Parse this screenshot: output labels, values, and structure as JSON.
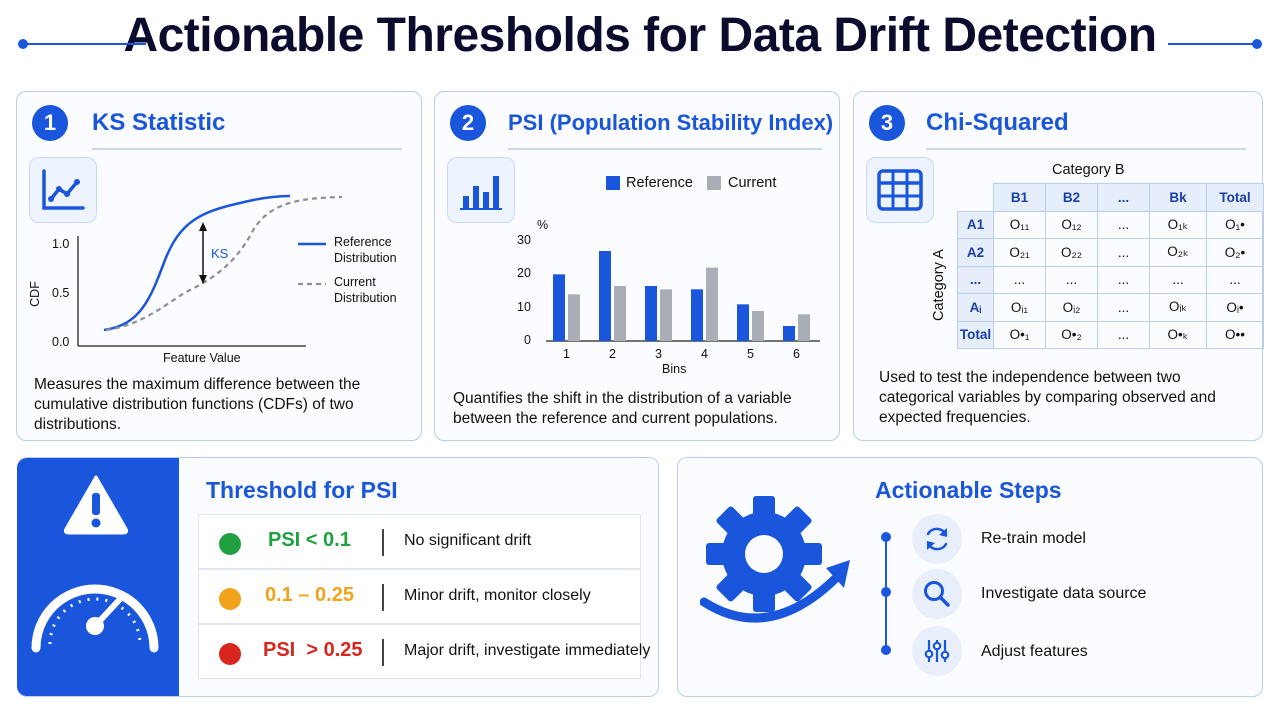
{
  "title": "Actionable Thresholds for Data Drift Detection",
  "colors": {
    "accent": "#1a56db",
    "gray": "#a9adb5",
    "green": "#1fa142",
    "orange": "#f0a31a",
    "red": "#d8261f"
  },
  "ks": {
    "number": "1",
    "title": "KS Statistic",
    "icon": "line-chart-icon",
    "y_axis_label": "CDF",
    "x_axis_label": "Feature Value",
    "y_ticks": [
      "0.0",
      "0.5",
      "1.0"
    ],
    "ks_label": "KS",
    "legend_reference_1": "Reference",
    "legend_reference_2": "Distribution",
    "legend_current_1": "Current",
    "legend_current_2": "Distribution",
    "description": "Measures the maximum difference between the cumulative distribution functions (CDFs) of two distributions."
  },
  "psi": {
    "number": "2",
    "title": "PSI (Population Stability Index)",
    "icon": "bar-chart-icon",
    "description": "Quantifies the shift in the distribution of a variable between the reference and current populations."
  },
  "chi": {
    "number": "3",
    "title": "Chi-Squared",
    "icon": "table-grid-icon",
    "col_group_label": "Category B",
    "row_group_label": "Category A",
    "headers": [
      "B1",
      "B2",
      "...",
      "Bk",
      "Total"
    ],
    "rows": [
      {
        "label": "A1",
        "cells": [
          "O₁₁",
          "O₁₂",
          "...",
          "O₁ₖ",
          "O₁•"
        ]
      },
      {
        "label": "A2",
        "cells": [
          "O₂₁",
          "O₂₂",
          "...",
          "O₂ₖ",
          "O₂•"
        ]
      },
      {
        "label": "...",
        "cells": [
          "...",
          "...",
          "...",
          "...",
          "..."
        ]
      },
      {
        "label": "Aᵢ",
        "cells": [
          "Oᵢ₁",
          "Oᵢ₂",
          "...",
          "Oᵢₖ",
          "Oᵢ•"
        ]
      },
      {
        "label": "Total",
        "cells": [
          "O•₁",
          "O•₂",
          "...",
          "O•ₖ",
          "O••"
        ]
      }
    ],
    "description": "Used to test the independence between two categorical variables by comparing observed and expected frequencies."
  },
  "threshold": {
    "title": "Threshold for PSI",
    "icons": [
      "warning-icon",
      "gauge-icon"
    ],
    "rows": [
      {
        "label": "PSI < 0.1",
        "text": "No significant drift",
        "color": "#1fa142"
      },
      {
        "label": "0.1 – 0.25",
        "text": "Minor drift, monitor closely",
        "color": "#f0a31a"
      },
      {
        "label": "PSI  > 0.25",
        "text": "Major drift, investigate immediately",
        "color": "#d8261f"
      }
    ]
  },
  "steps": {
    "title": "Actionable Steps",
    "items": [
      {
        "label": "Re-train model",
        "icon": "refresh-icon"
      },
      {
        "label": "Investigate data source",
        "icon": "magnifier-icon"
      },
      {
        "label": "Adjust features",
        "icon": "sliders-icon"
      }
    ]
  },
  "chart_data": {
    "type": "bar",
    "categories": [
      "1",
      "2",
      "3",
      "4",
      "5",
      "6"
    ],
    "series": [
      {
        "name": "Reference",
        "values": [
          20,
          27,
          16.5,
          15.5,
          11,
          4.5
        ]
      },
      {
        "name": "Current",
        "values": [
          14,
          16.5,
          15.5,
          22,
          9,
          8
        ]
      }
    ],
    "title": "",
    "xlabel": "Bins",
    "ylabel": "%",
    "ylim": [
      0,
      30
    ],
    "y_ticks": [
      "0",
      "10",
      "20",
      "30"
    ],
    "legend": "top"
  }
}
